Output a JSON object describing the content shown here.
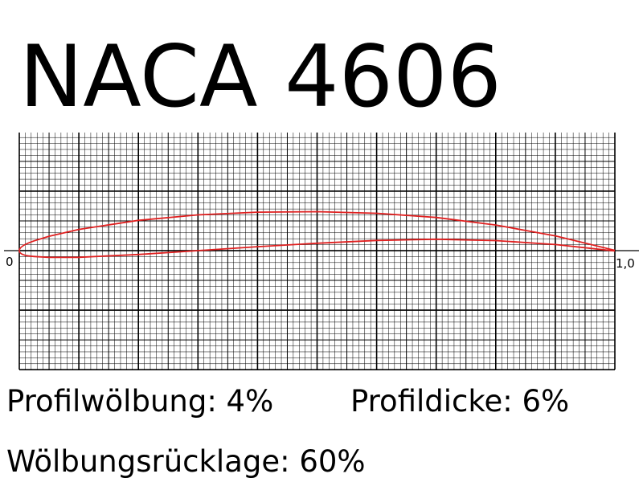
{
  "title": "NACA 4606",
  "axis_labels": {
    "start": "0",
    "end": "1,0"
  },
  "parameters": [
    "Profilwölbung: 4%",
    "Profildicke: 6%",
    "Wölbungsrücklage: 60%"
  ]
}
